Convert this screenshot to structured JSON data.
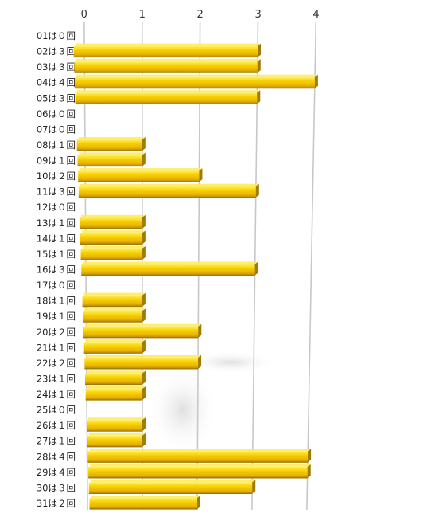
{
  "chart_data": {
    "type": "bar",
    "orientation": "horizontal",
    "xlim": [
      0,
      4
    ],
    "x_ticks": [
      "0",
      "1",
      "2",
      "3",
      "4"
    ],
    "grid": true,
    "legend": "none",
    "categories": [
      "01は０回",
      "02は３回",
      "03は３回",
      "04は４回",
      "05は３回",
      "06は０回",
      "07は０回",
      "08は１回",
      "09は１回",
      "10は２回",
      "11は３回",
      "12は０回",
      "13は１回",
      "14は１回",
      "15は１回",
      "16は３回",
      "17は０回",
      "18は１回",
      "19は１回",
      "20は２回",
      "21は１回",
      "22は２回",
      "23は１回",
      "24は１回",
      "25は０回",
      "26は１回",
      "27は１回",
      "28は４回",
      "29は４回",
      "30は３回",
      "31は２回"
    ],
    "values": [
      0,
      3,
      3,
      4,
      3,
      0,
      0,
      1,
      1,
      2,
      3,
      0,
      1,
      1,
      1,
      3,
      0,
      1,
      1,
      2,
      1,
      2,
      1,
      1,
      0,
      1,
      1,
      4,
      4,
      3,
      2
    ],
    "bar_color": "#f2c200",
    "bar_highlight": "#ffec5c",
    "bar_shadow": "#a27a00"
  }
}
